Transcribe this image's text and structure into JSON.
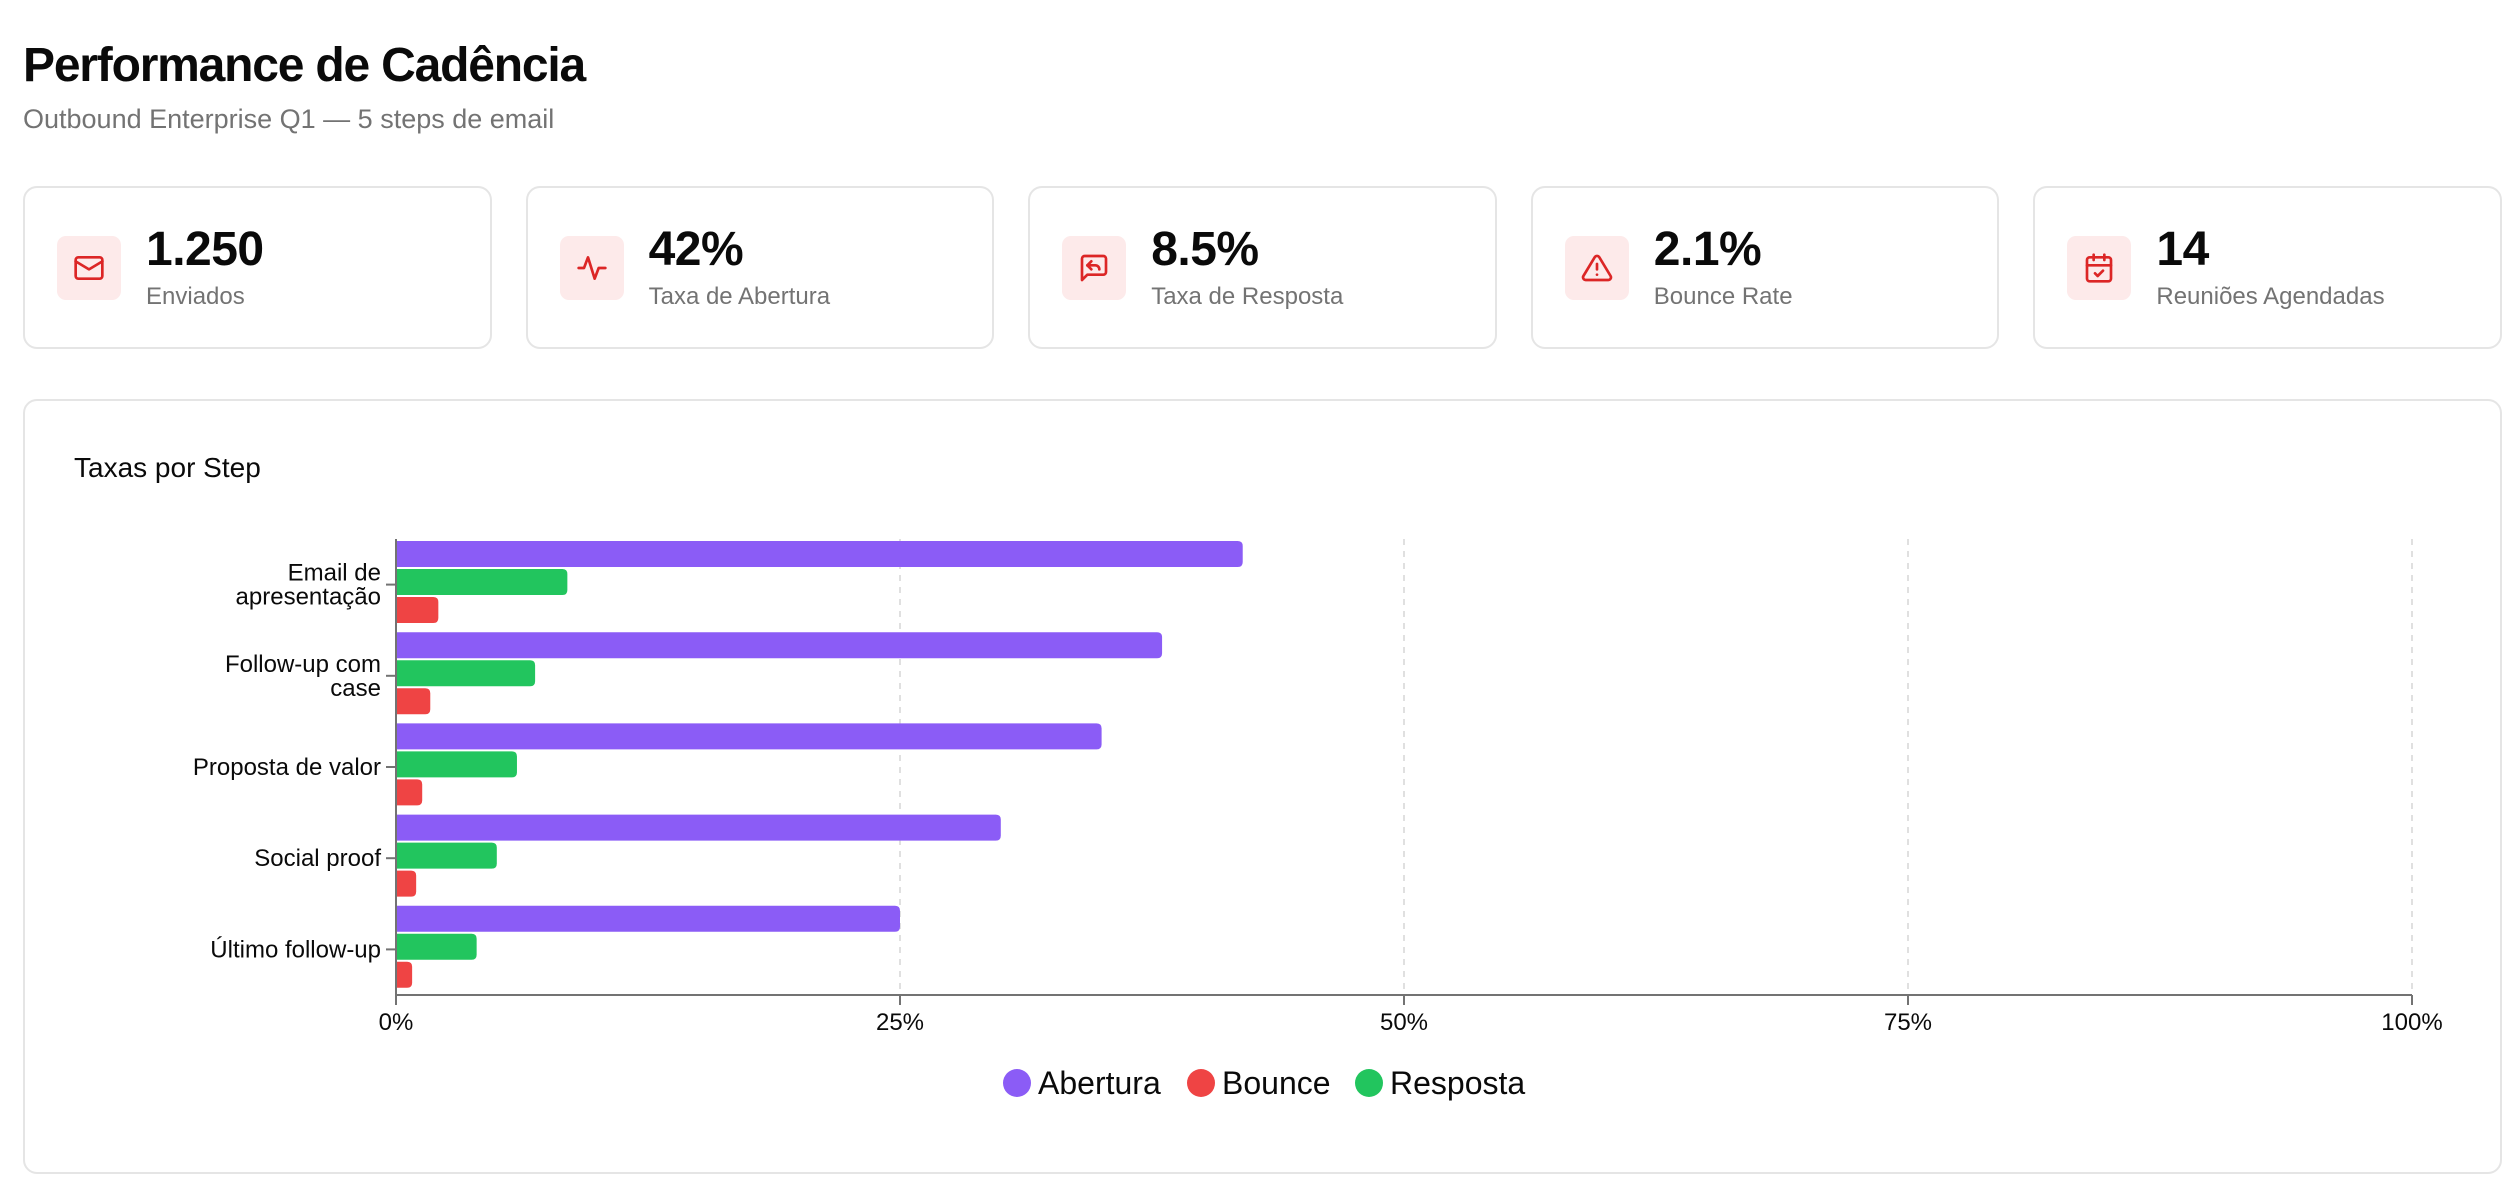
{
  "header": {
    "title": "Performance de Cadência",
    "subtitle": "Outbound Enterprise Q1 — 5 steps de email"
  },
  "kpis": [
    {
      "icon": "mail-icon",
      "value": "1.250",
      "label": "Enviados"
    },
    {
      "icon": "activity-icon",
      "value": "42%",
      "label": "Taxa de Abertura"
    },
    {
      "icon": "message-reply-icon",
      "value": "8.5%",
      "label": "Taxa de Resposta"
    },
    {
      "icon": "alert-triangle-icon",
      "value": "2.1%",
      "label": "Bounce Rate"
    },
    {
      "icon": "calendar-check-icon",
      "value": "14",
      "label": "Reuniões Agendadas"
    }
  ],
  "colors": {
    "accent": "#dc2626",
    "icon_bg": "#fdeaea",
    "abertura": "#8b5cf6",
    "resposta": "#22c55e",
    "bounce": "#ef4444"
  },
  "chart_data": {
    "type": "bar",
    "orientation": "horizontal",
    "title": "Taxas por Step",
    "categories": [
      [
        "Email de",
        "apresentação"
      ],
      [
        "Follow-up com",
        "case"
      ],
      [
        "Proposta de valor"
      ],
      [
        "Social proof"
      ],
      [
        "Último follow-up"
      ]
    ],
    "series": [
      {
        "name": "Abertura",
        "color": "#8b5cf6",
        "values": [
          42,
          38,
          35,
          30,
          25
        ]
      },
      {
        "name": "Resposta",
        "color": "#22c55e",
        "values": [
          8.5,
          6.9,
          6,
          5,
          4
        ]
      },
      {
        "name": "Bounce",
        "color": "#ef4444",
        "values": [
          2.1,
          1.7,
          1.3,
          1,
          0.8
        ]
      }
    ],
    "xlim": [
      0,
      100
    ],
    "xticks": [
      "0%",
      "25%",
      "50%",
      "75%",
      "100%"
    ],
    "grid": "vertical-dashed",
    "legend": {
      "placement": "bottom",
      "order": [
        "Abertura",
        "Bounce",
        "Resposta"
      ]
    }
  }
}
